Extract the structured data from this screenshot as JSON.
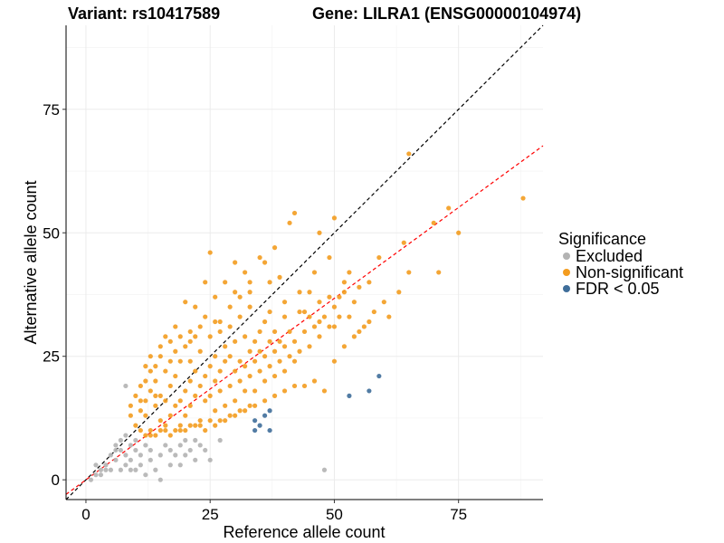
{
  "chart_data": {
    "type": "scatter",
    "title_variant": "Variant: rs10417589",
    "title_gene": "Gene: LILRA1 (ENSG00000104974)",
    "xlabel": "Reference allele count",
    "ylabel": "Alternative allele count",
    "xlim": [
      -4,
      92
    ],
    "ylim": [
      -4,
      92
    ],
    "xticks": [
      "0",
      "25",
      "50",
      "75"
    ],
    "yticks": [
      "0",
      "25",
      "50",
      "75"
    ],
    "grid": true,
    "legend": {
      "title": "Significance",
      "position": "right",
      "entries": [
        {
          "label": "Excluded",
          "color": "#B3B3B3"
        },
        {
          "label": "Non-significant",
          "color": "#F39C1F"
        },
        {
          "label": "FDR < 0.05",
          "color": "#3F6E9A"
        }
      ]
    },
    "reference_lines": [
      {
        "name": "identity",
        "slope": 1,
        "intercept": 0,
        "color": "#000000",
        "style": "dashed"
      },
      {
        "name": "fitted",
        "slope": 0.735,
        "intercept": 0,
        "color": "#FF0000",
        "style": "dashed"
      }
    ],
    "series": [
      {
        "name": "Excluded",
        "color": "#B3B3B3",
        "points": [
          [
            1,
            0
          ],
          [
            2,
            1
          ],
          [
            2,
            3
          ],
          [
            3,
            2
          ],
          [
            3,
            1
          ],
          [
            4,
            2
          ],
          [
            5,
            2
          ],
          [
            6,
            6
          ],
          [
            6,
            7
          ],
          [
            7,
            8
          ],
          [
            7,
            6
          ],
          [
            8,
            5
          ],
          [
            8,
            9
          ],
          [
            9,
            7
          ],
          [
            9,
            4
          ],
          [
            10,
            8
          ],
          [
            10,
            6
          ],
          [
            11,
            3
          ],
          [
            11,
            5
          ],
          [
            12,
            7
          ],
          [
            13,
            4
          ],
          [
            14,
            2
          ],
          [
            15,
            0
          ],
          [
            16,
            7
          ],
          [
            17,
            6
          ],
          [
            18,
            5
          ],
          [
            19,
            3
          ],
          [
            20,
            8
          ],
          [
            21,
            6
          ],
          [
            22,
            4
          ],
          [
            23,
            7
          ],
          [
            25,
            4
          ],
          [
            27,
            8
          ],
          [
            8,
            19
          ],
          [
            48,
            2
          ],
          [
            6,
            4
          ],
          [
            7,
            2
          ],
          [
            8,
            3
          ],
          [
            9,
            2
          ],
          [
            12,
            1
          ],
          [
            13,
            6
          ],
          [
            17,
            3
          ],
          [
            20,
            5
          ],
          [
            24,
            6
          ],
          [
            5,
            5
          ],
          [
            4,
            3
          ],
          [
            10,
            2
          ],
          [
            15,
            5
          ],
          [
            19,
            7
          ],
          [
            22,
            8
          ]
        ]
      },
      {
        "name": "FDR < 0.05",
        "color": "#3F6E9A",
        "points": [
          [
            34,
            12
          ],
          [
            35,
            11
          ],
          [
            36,
            13
          ],
          [
            34,
            10
          ],
          [
            37,
            14
          ],
          [
            37,
            10
          ],
          [
            53,
            17
          ],
          [
            57,
            18
          ],
          [
            59,
            21
          ]
        ]
      },
      {
        "name": "Non-significant",
        "color": "#F39C1F",
        "points": [
          [
            10,
            11
          ],
          [
            11,
            14
          ],
          [
            11,
            10
          ],
          [
            12,
            16
          ],
          [
            12,
            13
          ],
          [
            13,
            18
          ],
          [
            13,
            10
          ],
          [
            14,
            15
          ],
          [
            14,
            20
          ],
          [
            15,
            12
          ],
          [
            15,
            17
          ],
          [
            16,
            16
          ],
          [
            16,
            22
          ],
          [
            16,
            11
          ],
          [
            17,
            19
          ],
          [
            17,
            13
          ],
          [
            18,
            21
          ],
          [
            18,
            15
          ],
          [
            19,
            24
          ],
          [
            19,
            16
          ],
          [
            19,
            11
          ],
          [
            20,
            18
          ],
          [
            20,
            27
          ],
          [
            20,
            13
          ],
          [
            21,
            20
          ],
          [
            21,
            24
          ],
          [
            21,
            15
          ],
          [
            22,
            22
          ],
          [
            22,
            29
          ],
          [
            22,
            17
          ],
          [
            23,
            19
          ],
          [
            23,
            26
          ],
          [
            23,
            12
          ],
          [
            24,
            21
          ],
          [
            24,
            33
          ],
          [
            24,
            16
          ],
          [
            25,
            23
          ],
          [
            25,
            29
          ],
          [
            25,
            17
          ],
          [
            26,
            20
          ],
          [
            26,
            25
          ],
          [
            26,
            14
          ],
          [
            27,
            22
          ],
          [
            27,
            30
          ],
          [
            27,
            18
          ],
          [
            28,
            24
          ],
          [
            28,
            15
          ],
          [
            28,
            27
          ],
          [
            29,
            19
          ],
          [
            29,
            25
          ],
          [
            29,
            31
          ],
          [
            30,
            22
          ],
          [
            30,
            28
          ],
          [
            30,
            16
          ],
          [
            31,
            24
          ],
          [
            31,
            20
          ],
          [
            31,
            33
          ],
          [
            32,
            23
          ],
          [
            32,
            18
          ],
          [
            32,
            29
          ],
          [
            33,
            26
          ],
          [
            33,
            21
          ],
          [
            33,
            35
          ],
          [
            34,
            24
          ],
          [
            34,
            28
          ],
          [
            34,
            18
          ],
          [
            35,
            22
          ],
          [
            35,
            30
          ],
          [
            35,
            26
          ],
          [
            36,
            25
          ],
          [
            36,
            20
          ],
          [
            36,
            32
          ],
          [
            37,
            23
          ],
          [
            37,
            28
          ],
          [
            37,
            34
          ],
          [
            38,
            26
          ],
          [
            38,
            21
          ],
          [
            38,
            30
          ],
          [
            39,
            24
          ],
          [
            39,
            28
          ],
          [
            40,
            27
          ],
          [
            40,
            22
          ],
          [
            40,
            33
          ],
          [
            41,
            25
          ],
          [
            41,
            30
          ],
          [
            42,
            28
          ],
          [
            42,
            24
          ],
          [
            43,
            26
          ],
          [
            44,
            30
          ],
          [
            45,
            27
          ],
          [
            46,
            31
          ],
          [
            47,
            29
          ],
          [
            48,
            33
          ],
          [
            49,
            31
          ],
          [
            50,
            35
          ],
          [
            50,
            31
          ],
          [
            51,
            33
          ],
          [
            52,
            38
          ],
          [
            53,
            33
          ],
          [
            54,
            36
          ],
          [
            44,
            34
          ],
          [
            45,
            38
          ],
          [
            46,
            42
          ],
          [
            42,
            54
          ],
          [
            41,
            52
          ],
          [
            38,
            47
          ],
          [
            35,
            45
          ],
          [
            33,
            40
          ],
          [
            30,
            38
          ],
          [
            28,
            40
          ],
          [
            26,
            37
          ],
          [
            25,
            46
          ],
          [
            20,
            36
          ],
          [
            24,
            40
          ],
          [
            22,
            35
          ],
          [
            18,
            31
          ],
          [
            17,
            28
          ],
          [
            15,
            25
          ],
          [
            14,
            23
          ],
          [
            13,
            22
          ],
          [
            12,
            20
          ],
          [
            12,
            9
          ],
          [
            13,
            9
          ],
          [
            14,
            9
          ],
          [
            15,
            10
          ],
          [
            16,
            10
          ],
          [
            17,
            9
          ],
          [
            18,
            10
          ],
          [
            19,
            10
          ],
          [
            20,
            10
          ],
          [
            21,
            11
          ],
          [
            22,
            11
          ],
          [
            23,
            11
          ],
          [
            24,
            10
          ],
          [
            25,
            12
          ],
          [
            26,
            11
          ],
          [
            27,
            12
          ],
          [
            28,
            12
          ],
          [
            29,
            13
          ],
          [
            30,
            13
          ],
          [
            31,
            14
          ],
          [
            32,
            14
          ],
          [
            33,
            15
          ],
          [
            34,
            15
          ],
          [
            36,
            16
          ],
          [
            38,
            17
          ],
          [
            40,
            18
          ],
          [
            42,
            19
          ],
          [
            44,
            19
          ],
          [
            46,
            20
          ],
          [
            48,
            18
          ],
          [
            50,
            24
          ],
          [
            52,
            27
          ],
          [
            54,
            29
          ],
          [
            55,
            30
          ],
          [
            56,
            31
          ],
          [
            57,
            32
          ],
          [
            58,
            34
          ],
          [
            60,
            36
          ],
          [
            61,
            33
          ],
          [
            63,
            38
          ],
          [
            65,
            42
          ],
          [
            65,
            66
          ],
          [
            70,
            52
          ],
          [
            71,
            42
          ],
          [
            73,
            55
          ],
          [
            75,
            50
          ],
          [
            88,
            57
          ],
          [
            64,
            48
          ],
          [
            59,
            45
          ],
          [
            50,
            53
          ],
          [
            52,
            40
          ],
          [
            49,
            37
          ],
          [
            47,
            36
          ],
          [
            43,
            38
          ],
          [
            39,
            41
          ],
          [
            36,
            44
          ],
          [
            32,
            42
          ],
          [
            30,
            44
          ],
          [
            27,
            32
          ],
          [
            23,
            31
          ],
          [
            21,
            28
          ],
          [
            19,
            29
          ],
          [
            11,
            19
          ],
          [
            12,
            23
          ],
          [
            13,
            25
          ],
          [
            15,
            27
          ],
          [
            16,
            29
          ],
          [
            10,
            17
          ],
          [
            9,
            15
          ],
          [
            9,
            13
          ],
          [
            11,
            16
          ],
          [
            14,
            17
          ],
          [
            17,
            24
          ],
          [
            18,
            26
          ],
          [
            21,
            30
          ],
          [
            26,
            32
          ],
          [
            29,
            35
          ],
          [
            31,
            37
          ],
          [
            33,
            38
          ],
          [
            37,
            40
          ],
          [
            40,
            36
          ],
          [
            43,
            34
          ],
          [
            45,
            33
          ],
          [
            47,
            32
          ],
          [
            51,
            37
          ],
          [
            53,
            42
          ],
          [
            55,
            39
          ],
          [
            57,
            40
          ],
          [
            49,
            45
          ],
          [
            47,
            50
          ]
        ]
      }
    ]
  }
}
